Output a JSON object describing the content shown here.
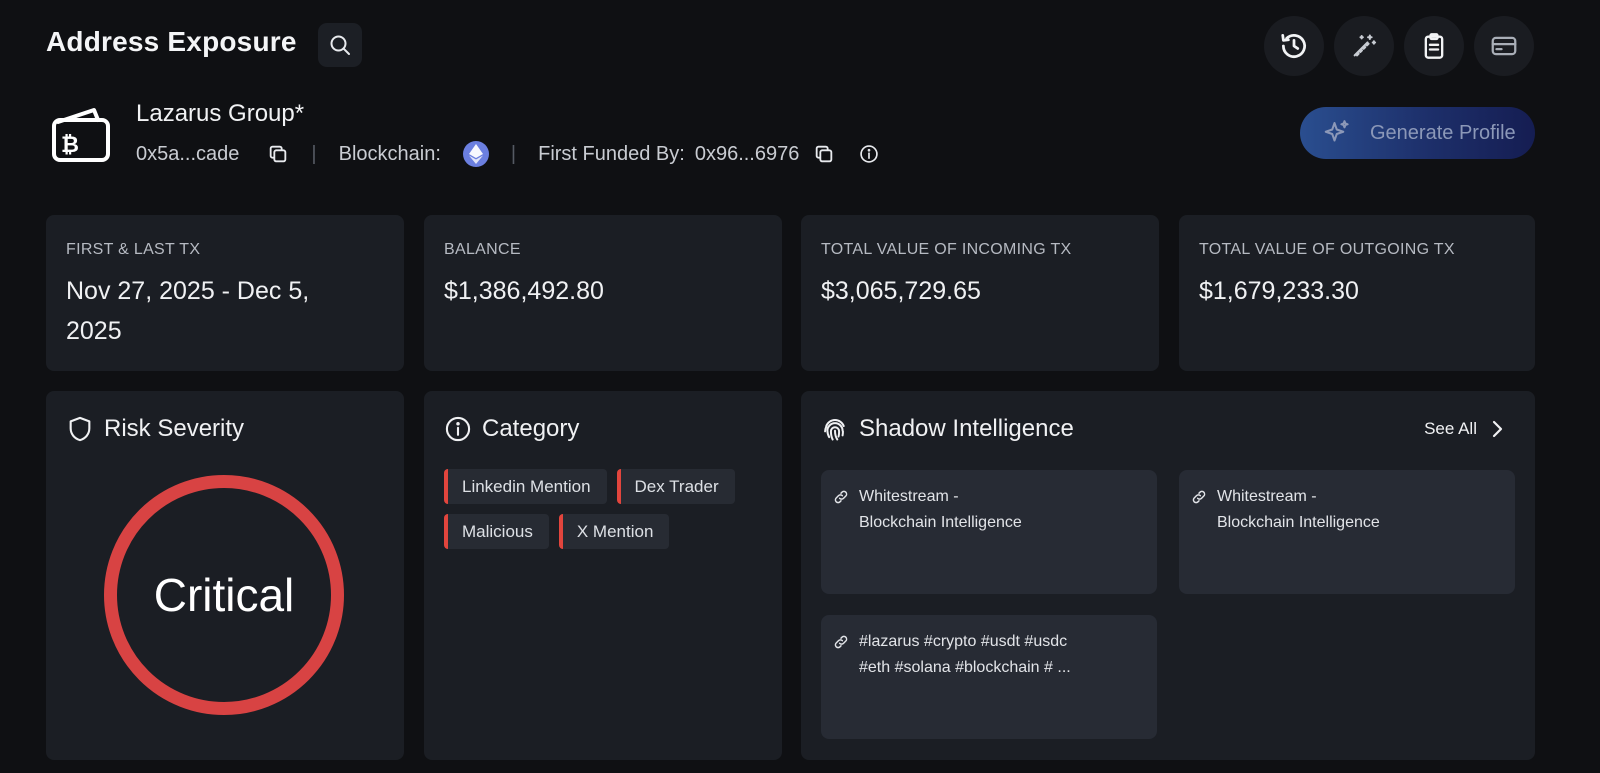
{
  "header": {
    "title": "Address Exposure"
  },
  "top_actions": [
    {
      "icon": "history-icon"
    },
    {
      "icon": "magic-wand-icon"
    },
    {
      "icon": "clipboard-icon"
    },
    {
      "icon": "card-icon"
    }
  ],
  "entity": {
    "name": "Lazarus Group*",
    "address": "0x5a...cade",
    "blockchain_label": "Blockchain:",
    "blockchain_icon": "ethereum-icon",
    "first_funded_label": "First Funded By:",
    "first_funded_address": "0x96...6976"
  },
  "generate_button": {
    "label": "Generate Profile"
  },
  "stats": [
    {
      "label": "FIRST & LAST TX",
      "value": "Nov 27, 2025 - Dec 5, 2025"
    },
    {
      "label": "BALANCE",
      "value": "$1,386,492.80"
    },
    {
      "label": "TOTAL VALUE OF INCOMING TX",
      "value": "$3,065,729.65"
    },
    {
      "label": "TOTAL VALUE OF OUTGOING TX",
      "value": "$1,679,233.30"
    }
  ],
  "risk": {
    "title": "Risk Severity",
    "level": "Critical",
    "color": "#d84343"
  },
  "category": {
    "title": "Category",
    "tags": [
      "Linkedin Mention",
      "Dex Trader",
      "Malicious",
      "X Mention"
    ],
    "tag_accent": "#e2453d"
  },
  "shadow": {
    "title": "Shadow Intelligence",
    "see_all": "See All",
    "items": [
      {
        "line1": "Whitestream -",
        "line2": "Blockchain Intelligence"
      },
      {
        "line1": "Whitestream -",
        "line2": "Blockchain Intelligence"
      },
      {
        "line1": "#lazarus #crypto #usdt #usdc",
        "line2": "#eth #solana #blockchain # ..."
      }
    ]
  }
}
